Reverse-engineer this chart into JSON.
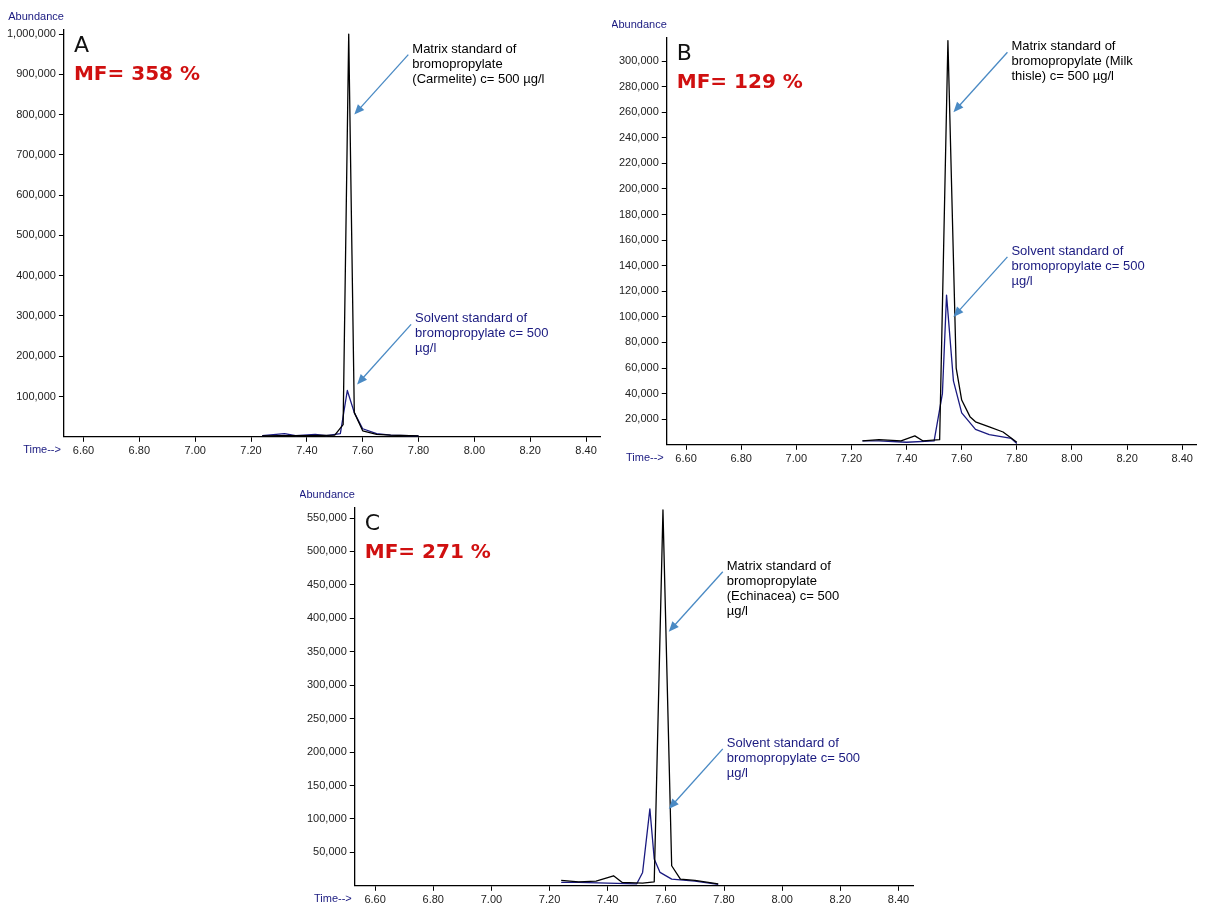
{
  "chart_data": [
    {
      "type": "line",
      "title": "A",
      "subtitle": "MF= 358 %",
      "xlabel": "Time-->",
      "ylabel": "Abundance",
      "xlim": [
        6.53,
        8.45
      ],
      "xticks": [
        {
          "value": 6.6,
          "label": "6.60"
        },
        {
          "value": 6.8,
          "label": "6.80"
        },
        {
          "value": 7.0,
          "label": "7.00"
        },
        {
          "value": 7.2,
          "label": "7.20"
        },
        {
          "value": 7.4,
          "label": "7.40"
        },
        {
          "value": 7.6,
          "label": "7.60"
        },
        {
          "value": 7.8,
          "label": "7.80"
        },
        {
          "value": 8.0,
          "label": "8.00"
        },
        {
          "value": 8.2,
          "label": "8.20"
        },
        {
          "value": 8.4,
          "label": "8.40"
        }
      ],
      "ylim": [
        0,
        1010000
      ],
      "yticks": [
        {
          "value": 100000,
          "label": "100,000"
        },
        {
          "value": 200000,
          "label": "200,000"
        },
        {
          "value": 300000,
          "label": "300,000"
        },
        {
          "value": 400000,
          "label": "400,000"
        },
        {
          "value": 500000,
          "label": "500,000"
        },
        {
          "value": 600000,
          "label": "600,000"
        },
        {
          "value": 700000,
          "label": "700,000"
        },
        {
          "value": 800000,
          "label": "800,000"
        },
        {
          "value": 900000,
          "label": "900,000"
        },
        {
          "value": 1000000,
          "label": "1,000,000"
        }
      ],
      "series": [
        {
          "color": "#000000",
          "x": [
            7.24,
            7.3,
            7.4,
            7.5,
            7.53,
            7.55,
            7.57,
            7.6,
            7.65,
            7.7,
            7.8
          ],
          "values": [
            2000,
            3000,
            3000,
            4000,
            30000,
            1000000,
            60000,
            15000,
            6000,
            4000,
            2000
          ]
        },
        {
          "color": "#1a1a80",
          "x": [
            7.24,
            7.32,
            7.36,
            7.43,
            7.47,
            7.52,
            7.545,
            7.57,
            7.6,
            7.65,
            7.7,
            7.8
          ],
          "values": [
            3000,
            8000,
            3000,
            6000,
            3000,
            8000,
            115000,
            60000,
            20000,
            8000,
            4000,
            2000
          ]
        }
      ],
      "annotations": [
        {
          "text": "Matrix standard of bromopropylate (Carmelite) c= 500 µg/l",
          "x": 7.57,
          "y": 800000
        },
        {
          "text": "Solvent standard of bromopropylate c= 500 µg/l",
          "x": 7.58,
          "y": 130000
        }
      ]
    },
    {
      "type": "line",
      "title": "B",
      "subtitle": "MF= 129 %",
      "xlabel": "Time-->",
      "ylabel": "Abundance",
      "xlim": [
        6.53,
        8.45
      ],
      "xticks": [
        {
          "value": 6.6,
          "label": "6.60"
        },
        {
          "value": 6.8,
          "label": "6.80"
        },
        {
          "value": 7.0,
          "label": "7.00"
        },
        {
          "value": 7.2,
          "label": "7.20"
        },
        {
          "value": 7.4,
          "label": "7.40"
        },
        {
          "value": 7.6,
          "label": "7.60"
        },
        {
          "value": 7.8,
          "label": "7.80"
        },
        {
          "value": 8.0,
          "label": "8.00"
        },
        {
          "value": 8.2,
          "label": "8.20"
        },
        {
          "value": 8.4,
          "label": "8.40"
        }
      ],
      "ylim": [
        0,
        318000
      ],
      "yticks": [
        {
          "value": 20000,
          "label": "20,000"
        },
        {
          "value": 40000,
          "label": "40,000"
        },
        {
          "value": 60000,
          "label": "60,000"
        },
        {
          "value": 80000,
          "label": "80,000"
        },
        {
          "value": 100000,
          "label": "100,000"
        },
        {
          "value": 120000,
          "label": "120,000"
        },
        {
          "value": 140000,
          "label": "140,000"
        },
        {
          "value": 160000,
          "label": "160,000"
        },
        {
          "value": 180000,
          "label": "180,000"
        },
        {
          "value": 200000,
          "label": "200,000"
        },
        {
          "value": 220000,
          "label": "220,000"
        },
        {
          "value": 240000,
          "label": "240,000"
        },
        {
          "value": 260000,
          "label": "260,000"
        },
        {
          "value": 280000,
          "label": "280,000"
        },
        {
          "value": 300000,
          "label": "300,000"
        }
      ],
      "series": [
        {
          "color": "#000000",
          "x": [
            7.24,
            7.3,
            7.38,
            7.43,
            7.46,
            7.52,
            7.55,
            7.58,
            7.6,
            7.63,
            7.65,
            7.7,
            7.75,
            7.8
          ],
          "values": [
            3000,
            4000,
            3000,
            7000,
            3000,
            4000,
            316000,
            60000,
            35000,
            22000,
            18000,
            14000,
            10000,
            2000
          ]
        },
        {
          "color": "#1a1a80",
          "x": [
            7.24,
            7.3,
            7.4,
            7.5,
            7.53,
            7.545,
            7.57,
            7.6,
            7.65,
            7.7,
            7.78,
            7.8
          ],
          "values": [
            3000,
            3000,
            2000,
            3000,
            40000,
            117000,
            50000,
            25000,
            12000,
            8000,
            5000,
            1000
          ]
        }
      ],
      "annotations": [
        {
          "text": "Matrix standard of bromopropylate (Milk thisle) c= 500 µg/l",
          "x": 7.57,
          "y": 260000
        },
        {
          "text": "Solvent standard of bromopropylate c= 500 µg/l",
          "x": 7.57,
          "y": 100000
        }
      ]
    },
    {
      "type": "line",
      "title": "C",
      "subtitle": "MF= 271 %",
      "xlabel": "Time-->",
      "ylabel": "Abundance",
      "xlim": [
        6.53,
        8.45
      ],
      "xticks": [
        {
          "value": 6.6,
          "label": "6.60"
        },
        {
          "value": 6.8,
          "label": "6.80"
        },
        {
          "value": 7.0,
          "label": "7.00"
        },
        {
          "value": 7.2,
          "label": "7.20"
        },
        {
          "value": 7.4,
          "label": "7.40"
        },
        {
          "value": 7.6,
          "label": "7.60"
        },
        {
          "value": 7.8,
          "label": "7.80"
        },
        {
          "value": 8.0,
          "label": "8.00"
        },
        {
          "value": 8.2,
          "label": "8.20"
        },
        {
          "value": 8.4,
          "label": "8.40"
        }
      ],
      "ylim": [
        0,
        565000
      ],
      "yticks": [
        {
          "value": 50000,
          "label": "50,000"
        },
        {
          "value": 100000,
          "label": "100,000"
        },
        {
          "value": 150000,
          "label": "150,000"
        },
        {
          "value": 200000,
          "label": "200,000"
        },
        {
          "value": 250000,
          "label": "250,000"
        },
        {
          "value": 300000,
          "label": "300,000"
        },
        {
          "value": 350000,
          "label": "350,000"
        },
        {
          "value": 400000,
          "label": "400,000"
        },
        {
          "value": 450000,
          "label": "450,000"
        },
        {
          "value": 500000,
          "label": "500,000"
        },
        {
          "value": 550000,
          "label": "550,000"
        }
      ],
      "series": [
        {
          "color": "#000000",
          "x": [
            7.24,
            7.3,
            7.36,
            7.42,
            7.45,
            7.52,
            7.56,
            7.59,
            7.62,
            7.65,
            7.7,
            7.78
          ],
          "values": [
            8000,
            6000,
            7000,
            15000,
            5000,
            4000,
            6000,
            562000,
            30000,
            10000,
            8000,
            3000
          ]
        },
        {
          "color": "#1a1a80",
          "x": [
            7.24,
            7.3,
            7.4,
            7.5,
            7.52,
            7.545,
            7.56,
            7.58,
            7.62,
            7.7,
            7.78
          ],
          "values": [
            5000,
            5000,
            4000,
            3000,
            20000,
            115000,
            40000,
            20000,
            10000,
            7000,
            2000
          ]
        }
      ],
      "annotations": [
        {
          "text": "Matrix standard of bromopropylate (Echinacea) c= 500 µg/l",
          "x": 7.61,
          "y": 380000
        },
        {
          "text": "Solvent standard of bromopropylate c= 500 µg/l",
          "x": 7.61,
          "y": 115000
        }
      ]
    }
  ]
}
